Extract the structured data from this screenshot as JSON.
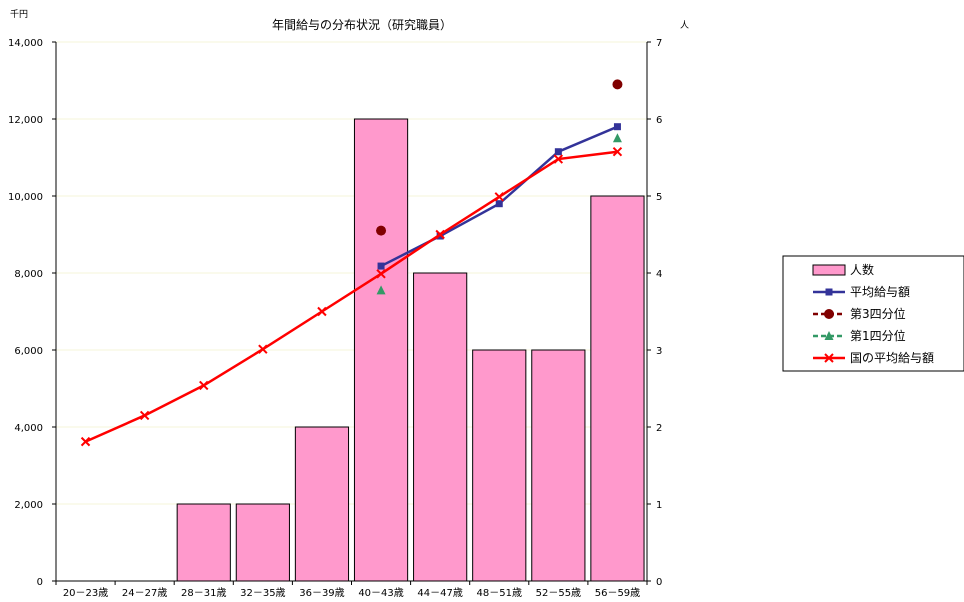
{
  "chart_data": {
    "type": "bar+line",
    "title": "年間給与の分布状況（研究職員）",
    "left_axis_unit": "千円",
    "right_axis_unit": "人",
    "categories": [
      "20－23歳",
      "24－27歳",
      "28－31歳",
      "32－35歳",
      "36－39歳",
      "40－43歳",
      "44－47歳",
      "48－51歳",
      "52－55歳",
      "56－59歳"
    ],
    "y_left": {
      "min": 0,
      "max": 14000,
      "ticks": [
        0,
        2000,
        4000,
        6000,
        8000,
        10000,
        12000,
        14000
      ],
      "tick_labels": [
        "0",
        "2,000",
        "4,000",
        "6,000",
        "8,000",
        "10,000",
        "12,000",
        "14,000"
      ]
    },
    "y_right": {
      "min": 0,
      "max": 7,
      "ticks": [
        0,
        1,
        2,
        3,
        4,
        5,
        6,
        7
      ],
      "tick_labels": [
        "0",
        "1",
        "2",
        "3",
        "4",
        "5",
        "6",
        "7"
      ]
    },
    "series": [
      {
        "name": "人数",
        "type": "bar",
        "axis": "right",
        "color": "#ff99cc",
        "values": [
          0,
          0,
          1,
          1,
          2,
          6,
          4,
          3,
          3,
          5
        ]
      },
      {
        "name": "平均給与額",
        "type": "line",
        "axis": "left",
        "color": "#333399",
        "marker": "square",
        "values": [
          null,
          null,
          null,
          null,
          null,
          8180,
          8960,
          9800,
          11150,
          11800
        ]
      },
      {
        "name": "第3四分位",
        "type": "scatter",
        "axis": "left",
        "color": "#800000",
        "marker": "circle",
        "dashed": true,
        "values": [
          null,
          null,
          null,
          null,
          null,
          9100,
          null,
          null,
          null,
          12900
        ]
      },
      {
        "name": "第1四分位",
        "type": "scatter",
        "axis": "left",
        "color": "#339966",
        "marker": "triangle",
        "dashed": true,
        "values": [
          null,
          null,
          null,
          null,
          null,
          7550,
          null,
          null,
          null,
          11500
        ]
      },
      {
        "name": "国の平均給与額",
        "type": "line",
        "axis": "left",
        "color": "#ff0000",
        "marker": "x",
        "values": [
          3620,
          4300,
          5080,
          6020,
          7000,
          7980,
          9000,
          9980,
          10960,
          11150
        ]
      }
    ],
    "legend_position": "right"
  }
}
